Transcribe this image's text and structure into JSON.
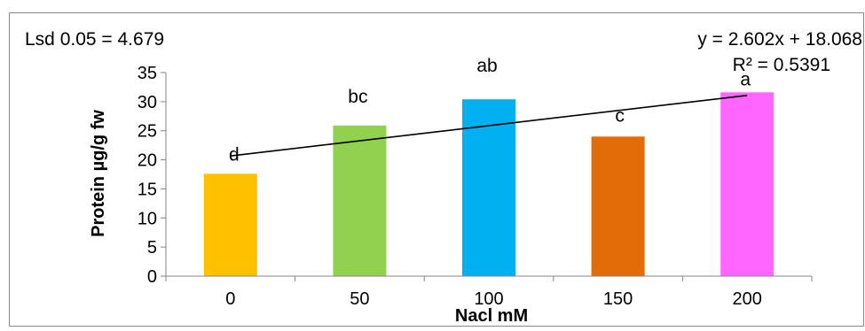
{
  "chart_data": {
    "type": "bar",
    "categories": [
      "0",
      "50",
      "100",
      "150",
      "200"
    ],
    "values": [
      17.6,
      25.9,
      30.4,
      24.0,
      31.6
    ],
    "bar_colors": [
      "#FFC000",
      "#92D050",
      "#00B0F0",
      "#E36C09",
      "#FF66FF"
    ],
    "significance_letters": [
      "d",
      "bc",
      "ab",
      "c",
      "a"
    ],
    "xlabel": "Nacl mM",
    "ylabel": "Protein µg/g fw",
    "ylim": [
      0,
      35
    ],
    "yticks": [
      0,
      5,
      10,
      15,
      20,
      25,
      30,
      35
    ],
    "grid": false,
    "lsd_label": "Lsd 0.05 = 4.679",
    "trendline": {
      "type": "linear",
      "slope": 2.602,
      "intercept": 18.068,
      "equation": "y = 2.602x + 18.068",
      "r_squared": "R² = 0.5391"
    }
  }
}
